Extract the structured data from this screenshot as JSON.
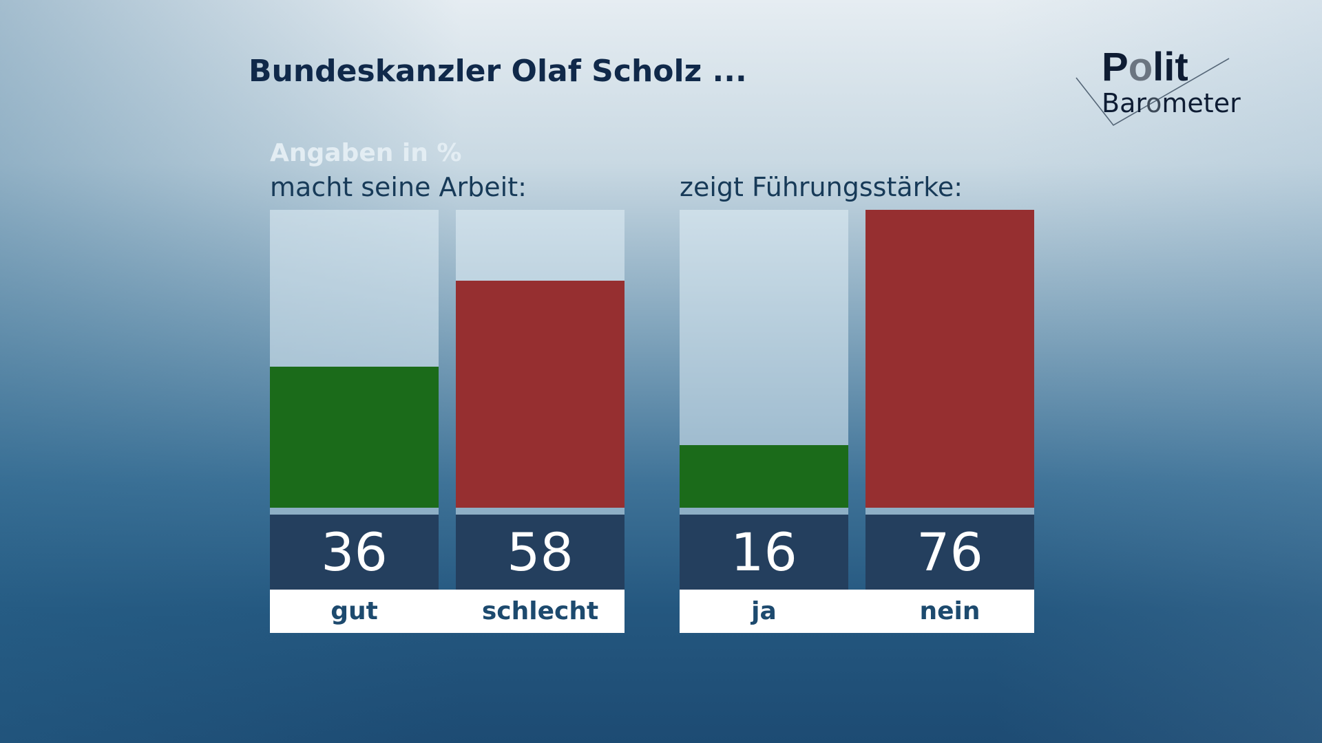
{
  "title": "Bundeskanzler Olaf Scholz ...",
  "logo": {
    "line1": "Polit",
    "line2": "Barometer"
  },
  "colors": {
    "positive": "#1b6b1a",
    "negative": "#962f30",
    "value_box": "#243f5e",
    "label": "#1d4a6e"
  },
  "chart_data": [
    {
      "type": "bar",
      "unit_label": "Angaben in %",
      "title": "macht seine Arbeit:",
      "categories": [
        "gut",
        "schlecht"
      ],
      "values": [
        36,
        58
      ],
      "ylim": [
        0,
        76
      ]
    },
    {
      "type": "bar",
      "title": "zeigt Führungsstärke:",
      "categories": [
        "ja",
        "nein"
      ],
      "values": [
        16,
        76
      ],
      "ylim": [
        0,
        76
      ]
    }
  ]
}
